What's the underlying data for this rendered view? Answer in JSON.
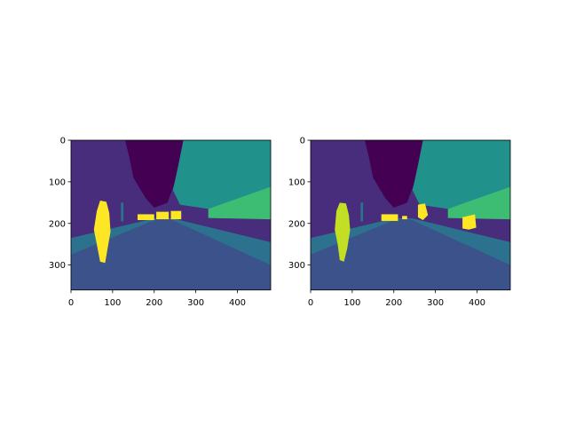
{
  "chart_data": [
    {
      "type": "image",
      "xlim": [
        0,
        480
      ],
      "ylim": [
        360,
        0
      ],
      "xticks": [
        0,
        100,
        200,
        300,
        400
      ],
      "yticks": [
        0,
        100,
        200,
        300
      ]
    },
    {
      "type": "image",
      "xlim": [
        0,
        480
      ],
      "ylim": [
        360,
        0
      ],
      "xticks": [
        0,
        100,
        200,
        300,
        400
      ],
      "yticks": [
        0,
        100,
        200,
        300
      ]
    }
  ]
}
